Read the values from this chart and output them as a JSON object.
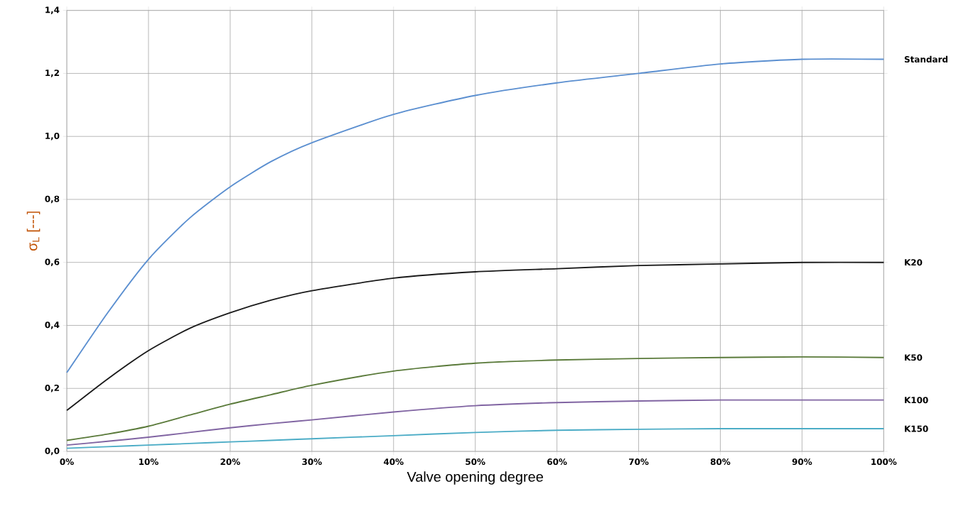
{
  "chart_data": {
    "type": "line",
    "xlabel": "Valve opening degree",
    "ylabel": "σ$_{L}$ [---]",
    "x": [
      0,
      5,
      10,
      15,
      20,
      25,
      30,
      40,
      50,
      60,
      70,
      80,
      90,
      100
    ],
    "series": [
      {
        "name": "Standard",
        "color": "#5b8fd0",
        "values": [
          0.25,
          0.44,
          0.61,
          0.74,
          0.84,
          0.92,
          0.98,
          1.07,
          1.13,
          1.17,
          1.2,
          1.23,
          1.245,
          1.245
        ]
      },
      {
        "name": "K20",
        "color": "#1a1a1a",
        "values": [
          0.13,
          0.23,
          0.32,
          0.39,
          0.44,
          0.48,
          0.51,
          0.55,
          0.57,
          0.58,
          0.59,
          0.595,
          0.6,
          0.6
        ]
      },
      {
        "name": "K50",
        "color": "#5a7a3a",
        "values": [
          0.035,
          0.055,
          0.08,
          0.115,
          0.15,
          0.18,
          0.21,
          0.255,
          0.28,
          0.29,
          0.295,
          0.298,
          0.3,
          0.298
        ]
      },
      {
        "name": "K100",
        "color": "#8064a2",
        "values": [
          0.02,
          0.032,
          0.045,
          0.06,
          0.075,
          0.088,
          0.1,
          0.125,
          0.145,
          0.155,
          0.16,
          0.163,
          0.163,
          0.163
        ]
      },
      {
        "name": "K150",
        "color": "#4bacc6",
        "values": [
          0.01,
          0.015,
          0.02,
          0.025,
          0.03,
          0.035,
          0.04,
          0.05,
          0.06,
          0.067,
          0.07,
          0.072,
          0.072,
          0.072
        ]
      }
    ],
    "xlim": [
      0,
      100
    ],
    "xticks": [
      {
        "value": 0,
        "label": "0%"
      },
      {
        "value": 10,
        "label": "10%"
      },
      {
        "value": 20,
        "label": "20%"
      },
      {
        "value": 30,
        "label": "30%"
      },
      {
        "value": 40,
        "label": "40%"
      },
      {
        "value": 50,
        "label": "50%"
      },
      {
        "value": 60,
        "label": "60%"
      },
      {
        "value": 70,
        "label": "70%"
      },
      {
        "value": 80,
        "label": "80%"
      },
      {
        "value": 90,
        "label": "90%"
      },
      {
        "value": 100,
        "label": "100%"
      }
    ],
    "ylim": [
      0,
      1.4
    ],
    "yticks": [
      {
        "value": 0,
        "label": "0,0"
      },
      {
        "value": 0.2,
        "label": "0,2"
      },
      {
        "value": 0.4,
        "label": "0,4"
      },
      {
        "value": 0.6,
        "label": "0,6"
      },
      {
        "value": 0.8,
        "label": "0,8"
      },
      {
        "value": 1.0,
        "label": "1,0"
      },
      {
        "value": 1.2,
        "label": "1,2"
      },
      {
        "value": 1.4,
        "label": "1,4"
      }
    ],
    "grid": true,
    "legend": false,
    "marker": "none",
    "line_style": "solid"
  }
}
